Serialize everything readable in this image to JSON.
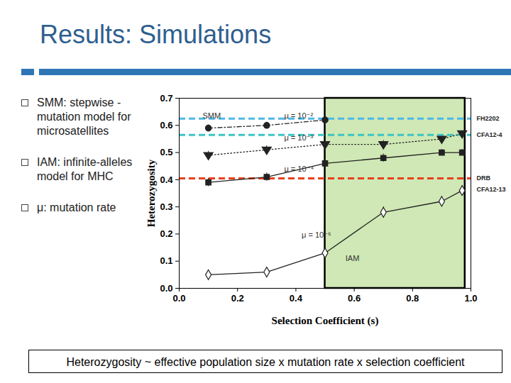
{
  "chart_data": {
    "type": "line",
    "title": "Results: Simulations",
    "bullets": [
      "SMM: stepwise -mutation model for microsatellites",
      "IAM: infinite-alleles model for MHC",
      "μ: mutation rate"
    ],
    "caption": "Heterozygosity ~ effective population size x mutation rate x selection coefficient",
    "x_label": "Selection Coefficient (s)",
    "y_label": "Heterozygosity",
    "xlim": [
      0,
      1.0
    ],
    "ylim": [
      0,
      0.7
    ],
    "xticks": [
      {
        "value": 0,
        "label": "0.0"
      },
      {
        "value": 0.2,
        "label": "0.2"
      },
      {
        "value": 0.4,
        "label": "0.4"
      },
      {
        "value": 0.6,
        "label": "0.6"
      },
      {
        "value": 0.8,
        "label": "0.8"
      },
      {
        "value": 1.0,
        "label": "1.0"
      }
    ],
    "yticks": [
      {
        "value": 0,
        "label": "0.0"
      },
      {
        "value": 0.1,
        "label": "0.1"
      },
      {
        "value": 0.2,
        "label": "0.2"
      },
      {
        "value": 0.3,
        "label": "0.3"
      },
      {
        "value": 0.4,
        "label": "0.4"
      },
      {
        "value": 0.5,
        "label": "0.5"
      },
      {
        "value": 0.6,
        "label": "0.6"
      },
      {
        "value": 0.7,
        "label": "0.7"
      }
    ],
    "highlight": {
      "x": [
        0.5,
        0.98
      ],
      "color": "#cfe8b5"
    },
    "series": [
      {
        "x": [
          0.1,
          0.3,
          0.5
        ],
        "values": [
          0.59,
          0.6,
          0.62
        ],
        "errors": [
          0.012,
          0.012,
          0.01
        ],
        "color": "#222222",
        "marker": "circle",
        "line_style": "dashdot"
      },
      {
        "x": [
          0.1,
          0.3,
          0.5,
          0.7,
          0.9,
          0.97
        ],
        "values": [
          0.49,
          0.51,
          0.53,
          0.53,
          0.55,
          0.57
        ],
        "errors": [
          0.015,
          0.015,
          0.01,
          0.015,
          0.01,
          0.01
        ],
        "color": "#222222",
        "marker": "triangle-down",
        "line_style": "dotted"
      },
      {
        "x": [
          0.1,
          0.3,
          0.5,
          0.7,
          0.9,
          0.97
        ],
        "values": [
          0.39,
          0.41,
          0.46,
          0.48,
          0.5,
          0.5
        ],
        "errors": [
          0.015,
          0.015,
          0.015,
          0.015,
          0.012,
          0.012
        ],
        "color": "#222222",
        "marker": "square",
        "line_style": "solid"
      },
      {
        "x": [
          0.1,
          0.3,
          0.5,
          0.7,
          0.9,
          0.97
        ],
        "values": [
          0.05,
          0.06,
          0.13,
          0.28,
          0.32,
          0.36
        ],
        "errors": [
          0.012,
          0.012,
          0.018,
          0.02,
          0.018,
          0.018
        ],
        "color": "#222222",
        "marker": "diamond_open",
        "line_style": "solid"
      }
    ],
    "references": [
      {
        "name": "FH2202",
        "value": 0.625,
        "color": "#4db8e8"
      },
      {
        "name": "CFA12-4",
        "value": 0.565,
        "color": "#3cc4c4"
      },
      {
        "name": "DRB",
        "value": 0.405,
        "color": "#e8401c"
      },
      {
        "name": "CFA12-13",
        "value": 0.365
      }
    ],
    "annotations": [
      {
        "text": "SMM",
        "x": 0.08,
        "y": 0.635
      },
      {
        "text": "μ = 10⁻²",
        "x": 0.36,
        "y": 0.635
      },
      {
        "text": "μ = 10⁻³",
        "x": 0.36,
        "y": 0.555
      },
      {
        "text": "μ = 10⁻⁴",
        "x": 0.36,
        "y": 0.44
      },
      {
        "text": "μ = 10⁻⁶",
        "x": 0.42,
        "y": 0.195
      },
      {
        "text": "IAM",
        "x": 0.57,
        "y": 0.11
      }
    ]
  }
}
